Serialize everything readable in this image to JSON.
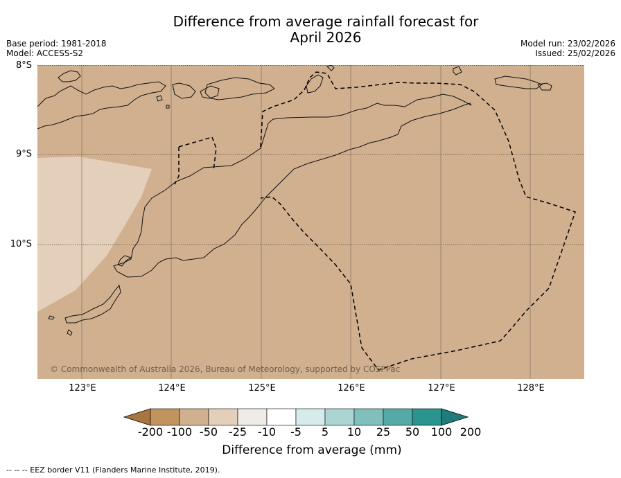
{
  "title": {
    "line1": "Difference from average rainfall forecast for",
    "line2": "April 2026"
  },
  "meta_left": {
    "base_period": "Base period: 1981-2018",
    "model": "Model: ACCESS-S2"
  },
  "meta_right": {
    "model_run": "Model run: 23/02/2026",
    "issued": "Issued: 25/02/2026"
  },
  "latitude_labels": [
    "8°S",
    "9°S",
    "10°S"
  ],
  "longitude_labels": [
    "123°E",
    "124°E",
    "125°E",
    "126°E",
    "127°E",
    "128°E"
  ],
  "copyright": "© Commonwealth of Australia 2026, Bureau of Meteorology, supported by COSPPac",
  "colorbar": {
    "ticks": [
      "-200",
      "-100",
      "-50",
      "-25",
      "-10",
      "-5",
      "5",
      "10",
      "25",
      "50",
      "100",
      "200"
    ],
    "colors": [
      "#a87540",
      "#c0935f",
      "#d1b090",
      "#e4cfba",
      "#efebe7",
      "#ffffff",
      "#d6ecea",
      "#abd5d3",
      "#80bfbc",
      "#55aaa6",
      "#2a948f",
      "#1f7d79"
    ],
    "label": "Difference from average (mm)"
  },
  "map": {
    "background_category": "-50",
    "background_color": "#d1b090",
    "region_category": "-25",
    "region_color": "#e4cfba"
  },
  "footnote": "--  --  -- EEZ border V11 (Flanders Marine Institute, 2019)."
}
